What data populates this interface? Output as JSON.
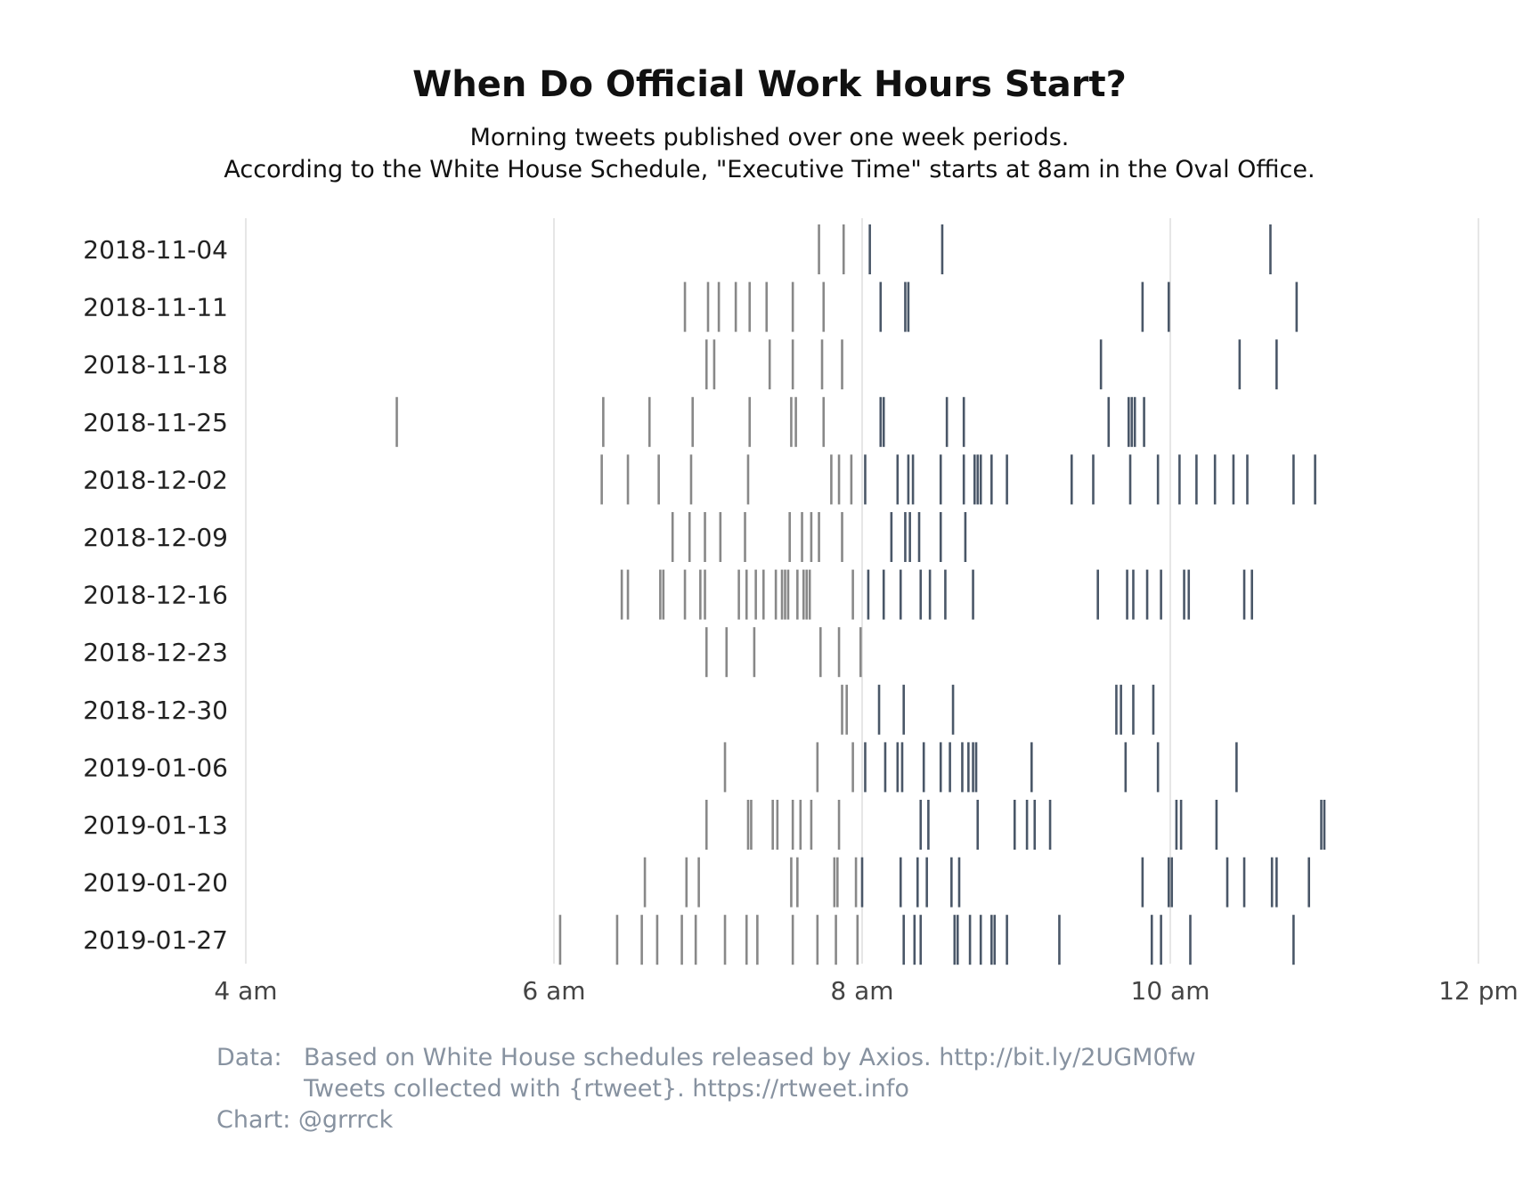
{
  "title": "When Do Official Work Hours Start?",
  "subtitle_line1": "Morning tweets published over one week periods.",
  "subtitle_line2": "According to the White House Schedule, \"Executive Time\" starts at 8am in the Oval Office.",
  "caption": {
    "data_label": "Data:",
    "data_line1": "Based on White House schedules released by Axios. http://bit.ly/2UGM0fw",
    "data_line2": "Tweets collected with {rtweet}. https://rtweet.info",
    "chart_line": "Chart: @grrrck"
  },
  "colors": {
    "before_8am": "#888888",
    "after_8am": "#4a5768",
    "grid": "#dddddd",
    "caption": "#8792a0"
  },
  "chart_data": {
    "type": "scatter",
    "mark": "tick",
    "title": "When Do Official Work Hours Start?",
    "xlabel": "",
    "ylabel": "",
    "xlim_hours": [
      4,
      12
    ],
    "x_ticks": [
      {
        "hour": 4,
        "label": "4 am"
      },
      {
        "hour": 6,
        "label": "6 am"
      },
      {
        "hour": 8,
        "label": "8 am"
      },
      {
        "hour": 10,
        "label": "10 am"
      },
      {
        "hour": 12,
        "label": "12 pm"
      }
    ],
    "grid": true,
    "weeks": [
      {
        "week": "2018-11-04",
        "times": [
          7.72,
          7.88,
          8.05,
          8.52,
          10.65
        ]
      },
      {
        "week": "2018-11-11",
        "times": [
          6.85,
          7.0,
          7.07,
          7.18,
          7.27,
          7.38,
          7.55,
          7.75,
          8.12,
          8.28,
          8.3,
          9.82,
          9.99,
          10.82
        ]
      },
      {
        "week": "2018-11-18",
        "times": [
          6.99,
          7.04,
          7.4,
          7.55,
          7.74,
          7.87,
          9.55,
          10.45,
          10.69
        ]
      },
      {
        "week": "2018-11-25",
        "times": [
          4.98,
          6.32,
          6.62,
          6.9,
          7.27,
          7.54,
          7.57,
          7.75,
          8.12,
          8.14,
          8.55,
          8.66,
          9.6,
          9.73,
          9.75,
          9.77,
          9.83
        ]
      },
      {
        "week": "2018-12-02",
        "times": [
          6.31,
          6.48,
          6.68,
          6.89,
          7.26,
          7.8,
          7.85,
          7.93,
          8.02,
          8.23,
          8.3,
          8.33,
          8.51,
          8.66,
          8.73,
          8.75,
          8.77,
          8.84,
          8.94,
          9.36,
          9.5,
          9.74,
          9.92,
          10.06,
          10.17,
          10.29,
          10.41,
          10.5,
          10.8,
          10.94
        ]
      },
      {
        "week": "2018-12-09",
        "times": [
          6.77,
          6.88,
          6.98,
          7.08,
          7.24,
          7.53,
          7.61,
          7.67,
          7.72,
          7.87,
          8.19,
          8.28,
          8.31,
          8.37,
          8.51,
          8.67
        ]
      },
      {
        "week": "2018-12-16",
        "times": [
          6.44,
          6.48,
          6.69,
          6.71,
          6.85,
          6.95,
          6.98,
          7.2,
          7.25,
          7.31,
          7.36,
          7.44,
          7.48,
          7.5,
          7.52,
          7.58,
          7.62,
          7.64,
          7.66,
          7.94,
          8.04,
          8.14,
          8.25,
          8.38,
          8.44,
          8.54,
          8.72,
          9.53,
          9.72,
          9.76,
          9.85,
          9.94,
          10.09,
          10.12,
          10.48,
          10.53
        ]
      },
      {
        "week": "2018-12-23",
        "times": [
          6.99,
          7.12,
          7.3,
          7.73,
          7.85,
          7.99
        ]
      },
      {
        "week": "2018-12-30",
        "times": [
          7.87,
          7.9,
          8.11,
          8.27,
          8.59,
          9.65,
          9.68,
          9.76,
          9.89
        ]
      },
      {
        "week": "2019-01-06",
        "times": [
          7.11,
          7.71,
          7.94,
          8.02,
          8.15,
          8.23,
          8.26,
          8.4,
          8.51,
          8.57,
          8.65,
          8.69,
          8.72,
          8.74,
          9.1,
          9.71,
          9.92,
          10.43
        ]
      },
      {
        "week": "2019-01-13",
        "times": [
          6.99,
          7.26,
          7.28,
          7.42,
          7.45,
          7.55,
          7.6,
          7.67,
          7.85,
          8.38,
          8.43,
          8.75,
          8.99,
          9.07,
          9.12,
          9.22,
          10.04,
          10.07,
          10.3,
          10.98,
          11.0
        ]
      },
      {
        "week": "2019-01-20",
        "times": [
          6.59,
          6.86,
          6.94,
          7.54,
          7.58,
          7.82,
          7.84,
          7.96,
          8.0,
          8.25,
          8.36,
          8.42,
          8.58,
          8.63,
          9.82,
          9.99,
          10.01,
          10.37,
          10.48,
          10.66,
          10.69,
          10.9
        ]
      },
      {
        "week": "2019-01-27",
        "times": [
          6.04,
          6.41,
          6.57,
          6.67,
          6.83,
          6.92,
          7.11,
          7.25,
          7.32,
          7.55,
          7.71,
          7.83,
          7.97,
          8.27,
          8.34,
          8.38,
          8.6,
          8.62,
          8.7,
          8.77,
          8.84,
          8.86,
          8.94,
          9.28,
          9.88,
          9.94,
          10.13,
          10.8
        ]
      }
    ]
  }
}
